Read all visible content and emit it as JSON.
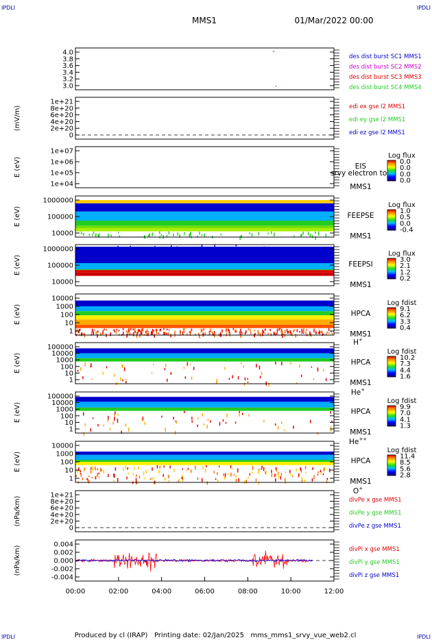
{
  "header": {
    "corner_tl": "IPDLI",
    "corner_tr": "IPDLI",
    "mission": "MMS1",
    "date": "01/Mar/2022 00:00",
    "corner_bl": "IPDLI",
    "corner_br": "IPDLI",
    "footer": "Produced by cl (IRAP)   Printing date: 02/Jan/2025   mms_mms1_srvy_vue_web2.cl"
  },
  "colors": {
    "blue": "#0000cc",
    "magenta": "#cc00cc",
    "red": "#dd0000",
    "green": "#22cc22"
  },
  "chart_data": [
    {
      "type": "scatter",
      "id": "p1",
      "ylabel": "",
      "yticks": [
        "4.0",
        "3.8",
        "3.6",
        "3.4",
        "3.2",
        "3.0"
      ],
      "ylim": [
        2.9,
        4.1
      ],
      "legend": [
        {
          "text": "des dist burst SC1 MMS1",
          "color": "#0000cc"
        },
        {
          "text": "des dist burst SC2 MMS2",
          "color": "#cc00cc"
        },
        {
          "text": "des dist burst SC3 MMS3",
          "color": "#dd0000"
        },
        {
          "text": "des dist burst SC4 MMS4",
          "color": "#22cc22"
        }
      ],
      "points": [
        {
          "x": 9.2,
          "y": 4.0
        },
        {
          "x": 9.3,
          "y": 3.0
        }
      ]
    },
    {
      "type": "line",
      "id": "p2",
      "ylabel": "(mV/m)",
      "yticks": [
        "1e+21",
        "8e+20",
        "6e+20",
        "4e+20",
        "2e+20",
        "0"
      ],
      "legend": [
        {
          "text": "edi ex gse l2 MMS1",
          "color": "#dd0000"
        },
        {
          "text": "edi ey gse l2 MMS1",
          "color": "#22cc22"
        },
        {
          "text": "edi ez gse l2 MMS1",
          "color": "#0000cc"
        }
      ]
    },
    {
      "type": "heatmap",
      "id": "p3",
      "ylabel": "E (eV)",
      "yticks": [
        "1e+07",
        "1e+06",
        "1e+05",
        "1e+04"
      ],
      "label": [
        "EIS",
        "MMS1"
      ],
      "overlay": "srvy electron to",
      "colorbar": {
        "title": "Log flux",
        "ticks": [
          "0.0",
          "0.0",
          "0.0",
          "0.0"
        ]
      }
    },
    {
      "type": "heatmap",
      "id": "p4",
      "ylabel": "E (eV)",
      "yticks": [
        "1000000",
        "100000",
        "10000"
      ],
      "label": [
        "FEEPSE",
        "MMS1"
      ],
      "colorbar": {
        "title": "Log flux",
        "ticks": [
          "1.0",
          "0.5",
          "0.0",
          "-0.4"
        ]
      }
    },
    {
      "type": "heatmap",
      "id": "p5",
      "ylabel": "E (eV)",
      "yticks": [
        "1000000",
        "100000",
        "10000"
      ],
      "label": [
        "FEEPSI",
        "MMS1"
      ],
      "colorbar": {
        "title": "Log flux",
        "ticks": [
          "3.0",
          "2.1",
          "1.2",
          "0.2"
        ]
      }
    },
    {
      "type": "heatmap",
      "id": "p6",
      "ylabel": "E (eV)",
      "yticks": [
        "10000",
        "1000",
        "100",
        "10",
        "1"
      ],
      "label": [
        "HPCA",
        "MMS1"
      ],
      "species": "H",
      "species_sup": "+",
      "colorbar": {
        "title": "Log fdist",
        "ticks": [
          "9.1",
          "6.2",
          "3.3",
          "0.4"
        ]
      }
    },
    {
      "type": "heatmap",
      "id": "p7",
      "ylabel": "E (eV)",
      "yticks": [
        "100000",
        "10000",
        "1000",
        "100",
        "10",
        "1"
      ],
      "label": [
        "HPCA",
        "MMS1"
      ],
      "species": "He",
      "species_sup": "+",
      "colorbar": {
        "title": "Log fdist",
        "ticks": [
          "10.2",
          "7.3",
          "4.4",
          "1.6"
        ]
      }
    },
    {
      "type": "heatmap",
      "id": "p8",
      "ylabel": "E (eV)",
      "yticks": [
        "100000",
        "10000",
        "1000",
        "100",
        "10",
        "1"
      ],
      "label": [
        "HPCA",
        "MMS1"
      ],
      "species": "He",
      "species_sup": "++",
      "colorbar": {
        "title": "Log fdist",
        "ticks": [
          "9.9",
          "7.0",
          "4.1",
          "1.3"
        ]
      }
    },
    {
      "type": "heatmap",
      "id": "p9",
      "ylabel": "E (eV)",
      "yticks": [
        "10000",
        "1000",
        "100",
        "10",
        "1"
      ],
      "label": [
        "HPCA",
        "MMS1"
      ],
      "species": "O",
      "species_sup": "+",
      "colorbar": {
        "title": "Log fdist",
        "ticks": [
          "11.4",
          "8.5",
          "5.6",
          "2.8"
        ]
      }
    },
    {
      "type": "line",
      "id": "p10",
      "ylabel": "(nPa/km)",
      "yticks": [
        "1e+21",
        "8e+20",
        "6e+20",
        "4e+20",
        "2e+20",
        "0"
      ],
      "legend": [
        {
          "text": "divPe x gse MMS1",
          "color": "#dd0000"
        },
        {
          "text": "divPe y gse MMS1",
          "color": "#22cc22"
        },
        {
          "text": "divPe z gse MMS1",
          "color": "#0000cc"
        }
      ]
    },
    {
      "type": "line",
      "id": "p11",
      "ylabel": "(nPa/km)",
      "yticks": [
        "0.004",
        "0.002",
        "0.000",
        "-0.002",
        "-0.004"
      ],
      "ylim": [
        -0.005,
        0.005
      ],
      "legend": [
        {
          "text": "divPi x gse MMS1",
          "color": "#dd0000"
        },
        {
          "text": "divPi y gse MMS1",
          "color": "#22cc22"
        },
        {
          "text": "divPi z gse MMS1",
          "color": "#0000cc"
        }
      ]
    }
  ],
  "xaxis": {
    "ticks": [
      "00:00",
      "02:00",
      "04:00",
      "06:00",
      "08:00",
      "10:00",
      "12:00"
    ],
    "range": [
      0,
      12
    ]
  }
}
